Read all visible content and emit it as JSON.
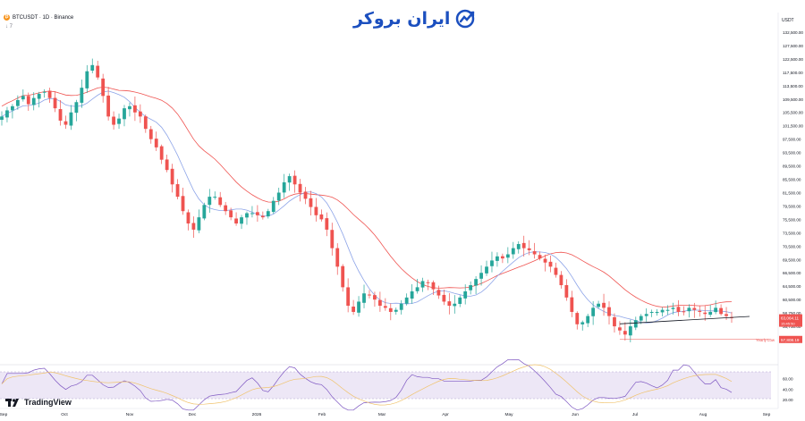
{
  "header": {
    "coin_glyph": "₿",
    "symbol_line": "BTCUSDT · 1D · Binance",
    "sub_line": "↓ 7"
  },
  "brand": {
    "name": "ایران بروکر",
    "logo_icon": "broker-logo-icon",
    "color": "#1b4fbf"
  },
  "tradingview": {
    "label": "TradingView",
    "logo_icon": "tradingview-logo-icon"
  },
  "colors": {
    "up": "#26a69a",
    "down": "#ef5350",
    "ma_fast": "#8da4e8",
    "ma_slow": "#ef5350",
    "rsi_line": "#7e57c2",
    "rsi_signal": "#f0c36d",
    "rsi_band": "#ede7f6",
    "trendline": "#131722"
  },
  "chart_data": {
    "type": "candlestick",
    "unit": "USDT",
    "x_tick_labels": [
      "Sep",
      "Oct",
      "Nov",
      "Dec",
      "2026",
      "Feb",
      "Mar",
      "Apr",
      "May",
      "Jun",
      "Jul",
      "Aug",
      "Sep"
    ],
    "y_tick_labels": [
      "132,500.00",
      "127,500.00",
      "122,500.00",
      "117,500.00",
      "113,500.00",
      "109,500.00",
      "105,500.00",
      "101,500.00",
      "97,500.00",
      "93,500.00",
      "89,500.00",
      "85,500.00",
      "81,500.00",
      "79,500.00",
      "75,500.00",
      "73,500.00",
      "70,500.00",
      "69,500.00",
      "66,500.00",
      "64,500.00",
      "60,500.00",
      "58,750.00",
      "56,750.00",
      "55,150.00"
    ],
    "price_labels": {
      "last": "63,064.11",
      "last_sub": "15:45:50",
      "yearly_low_label": "Yearly Low",
      "yearly_low": "57,808.19"
    },
    "closes_approx": [
      112000,
      113500,
      114500,
      116000,
      117000,
      115000,
      116500,
      117500,
      118000,
      116500,
      114000,
      111000,
      110000,
      113000,
      115500,
      119000,
      123000,
      124500,
      121500,
      117000,
      112000,
      110000,
      111500,
      114000,
      114500,
      113000,
      112000,
      109000,
      106500,
      104500,
      101500,
      99000,
      95500,
      92500,
      89000,
      86000,
      84500,
      87500,
      90500,
      92500,
      92500,
      90500,
      89000,
      87500,
      86000,
      87500,
      88500,
      88500,
      88000,
      87500,
      89000,
      91500,
      93500,
      96000,
      97500,
      95500,
      93500,
      92000,
      90000,
      88000,
      87000,
      84500,
      80000,
      75500,
      70500,
      66000,
      64500,
      67000,
      69000,
      68500,
      67500,
      66000,
      65500,
      64500,
      65000,
      66500,
      68000,
      69500,
      70500,
      72000,
      71500,
      70000,
      68500,
      67000,
      66000,
      66500,
      68000,
      69500,
      71000,
      72500,
      74000,
      75500,
      77000,
      78000,
      77500,
      78500,
      80000,
      81000,
      80000,
      79500,
      78500,
      77500,
      76500,
      75500,
      73500,
      71000,
      68000,
      64500,
      61500,
      62000,
      63500,
      65500,
      66500,
      65500,
      63500,
      61000,
      60000,
      59000,
      61000,
      62500,
      63500,
      64000,
      64500,
      64500,
      65000,
      65000,
      65500,
      64500,
      64500,
      65500,
      65000,
      64500,
      64000,
      64500,
      65500,
      64000,
      63500,
      63064
    ],
    "rsi": {
      "levels": [
        70,
        30
      ],
      "tick_labels": [
        "60.00",
        "40.00",
        "20.00"
      ]
    },
    "trendline": "rising support under recent lows"
  }
}
